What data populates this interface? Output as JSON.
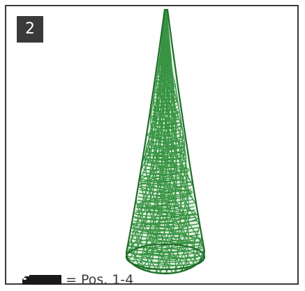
{
  "figure": {
    "badge_number": "2",
    "legend_text": "= Pos. 1-4",
    "truck_icon": "truck-icon",
    "colors": {
      "border": "#3a3a3a",
      "badge_bg": "#3a3a3a",
      "tree_green": "#2f8f3a",
      "tree_dark": "#1f6e2a"
    }
  }
}
